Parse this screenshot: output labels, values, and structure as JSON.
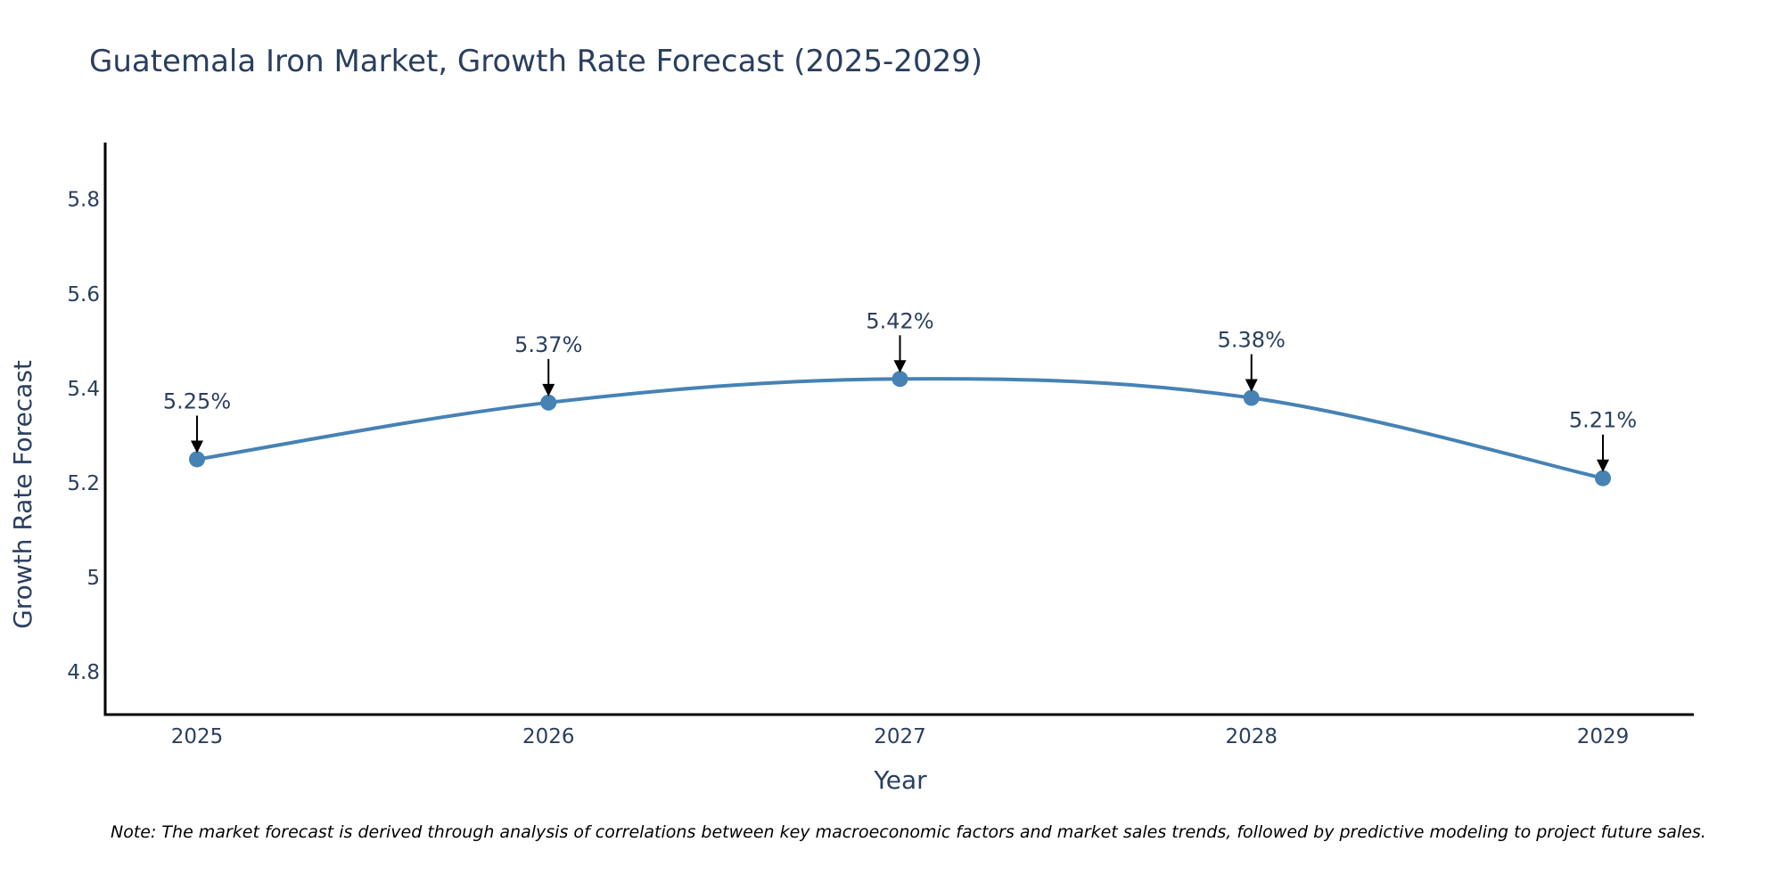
{
  "chart_data": {
    "type": "line",
    "title": "Guatemala Iron Market, Growth Rate Forecast (2025-2029)",
    "xlabel": "Year",
    "ylabel": "Growth Rate Forecast",
    "categories": [
      "2025",
      "2026",
      "2027",
      "2028",
      "2029"
    ],
    "series": [
      {
        "name": "Growth Rate Forecast",
        "values": [
          5.25,
          5.37,
          5.42,
          5.38,
          5.21
        ],
        "labels": [
          "5.25%",
          "5.37%",
          "5.42%",
          "5.38%",
          "5.21%"
        ]
      }
    ],
    "ylim": [
      4.71,
      5.92
    ],
    "yticks": [
      4.8,
      5,
      5.2,
      5.4,
      5.6,
      5.8
    ],
    "ytick_labels": [
      "4.8",
      "5",
      "5.2",
      "5.4",
      "5.6",
      "5.8"
    ],
    "grid": false,
    "line_color": "#4682b4",
    "axis_color": "#000000",
    "note": "Note: The market forecast is derived through analysis of correlations between key macroeconomic factors and market sales trends, followed by predictive modeling to project future sales."
  }
}
